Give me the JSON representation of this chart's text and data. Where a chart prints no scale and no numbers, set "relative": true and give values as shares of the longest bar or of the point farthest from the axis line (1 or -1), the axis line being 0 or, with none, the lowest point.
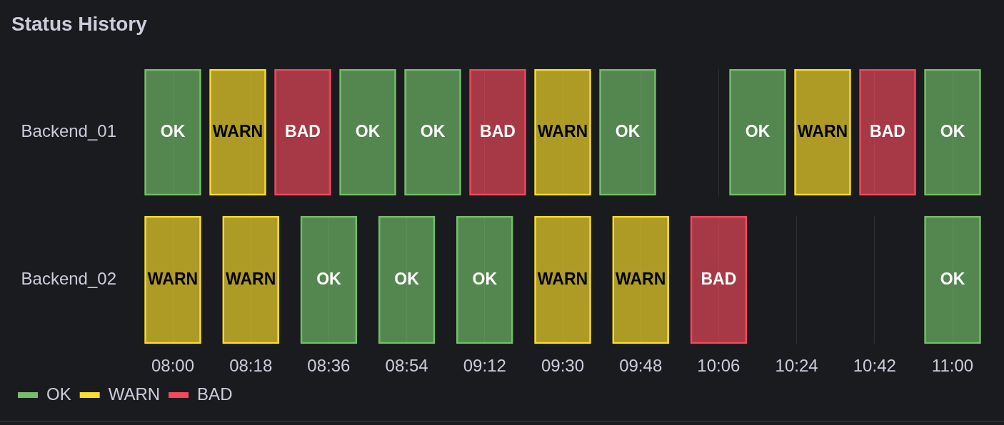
{
  "chart_data": [
    {
      "type": "bar",
      "title": "Status History",
      "ylabel": "Backend_01",
      "relative": true,
      "series": [
        {
          "name": "OK",
          "color": "#73bf69",
          "x": [
            8,
            8.75,
            9,
            9.75,
            10.25,
            11
          ],
          "values": [
            1,
            1,
            1,
            1,
            1,
            1
          ]
        },
        {
          "name": "WARN",
          "color": "#fade2a",
          "x": [
            8.25,
            9.5,
            10.5
          ],
          "values": [
            1,
            1,
            1
          ]
        },
        {
          "name": "BAD",
          "color": "#f2495c",
          "x": [
            8.5,
            9.25,
            10.75
          ],
          "values": [
            1,
            1,
            1
          ]
        }
      ],
      "xlim": [
        8,
        11
      ],
      "xticks": [
        {
          "value": 8,
          "label": null
        },
        {
          "value": 8.3,
          "label": null
        },
        {
          "value": 8.6,
          "label": null
        },
        {
          "value": 8.9,
          "label": null
        },
        {
          "value": 9.2,
          "label": null
        },
        {
          "value": 9.5,
          "label": null
        },
        {
          "value": 9.8,
          "label": null
        },
        {
          "value": 10.1,
          "label": null
        },
        {
          "value": 10.4,
          "label": null
        },
        {
          "value": 10.7,
          "label": null
        },
        {
          "value": 11,
          "label": null
        }
      ],
      "tick_labels": false,
      "grid": "x"
    },
    {
      "type": "bar",
      "ylabel": "Backend_02",
      "relative": true,
      "series": [
        {
          "name": "OK",
          "color": "#73bf69",
          "x": [
            8.6,
            8.9,
            9.2,
            11
          ],
          "values": [
            1,
            1,
            1,
            1
          ]
        },
        {
          "name": "WARN",
          "color": "#fade2a",
          "x": [
            8,
            8.3,
            9.5,
            9.8
          ],
          "values": [
            1,
            1,
            1,
            1
          ]
        },
        {
          "name": "BAD",
          "color": "#f2495c",
          "x": [
            10.1
          ],
          "values": [
            1
          ]
        }
      ],
      "xlim": [
        8,
        11
      ],
      "xticks": [
        {
          "value": 8,
          "label": "08:00"
        },
        {
          "value": 8.3,
          "label": "08:18"
        },
        {
          "value": 8.6,
          "label": "08:36"
        },
        {
          "value": 8.9,
          "label": "08:54"
        },
        {
          "value": 9.2,
          "label": "09:12"
        },
        {
          "value": 9.5,
          "label": "09:30"
        },
        {
          "value": 9.8,
          "label": "09:48"
        },
        {
          "value": 10.1,
          "label": "10:06"
        },
        {
          "value": 10.4,
          "label": "10:24"
        },
        {
          "value": 10.7,
          "label": "10:42"
        },
        {
          "value": 11,
          "label": "11:00"
        }
      ],
      "tick_labels": "x",
      "grid": "x",
      "legend": "bottom left"
    }
  ]
}
